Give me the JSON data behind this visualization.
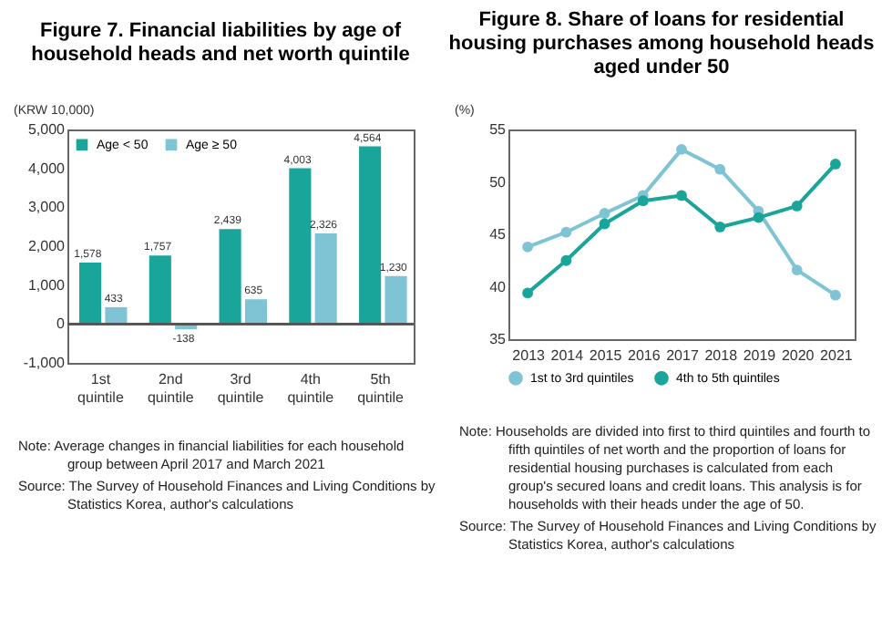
{
  "chart_data": [
    {
      "type": "bar",
      "title": "Figure 7. Financial liabilities by age of household heads and net worth quintile",
      "ylabel": "(KRW 10,000)",
      "categories": [
        "1st quintile",
        "2nd quintile",
        "3rd quintile",
        "4th quintile",
        "5th quintile"
      ],
      "series": [
        {
          "name": "Age < 50",
          "color": "#1aa59a",
          "values": [
            1578,
            1757,
            2439,
            4003,
            4564
          ],
          "value_labels": [
            "1,578",
            "1,757",
            "2,439",
            "4,003",
            "4,564"
          ]
        },
        {
          "name": "Age ≥ 50",
          "color": "#7ec4d4",
          "values": [
            433,
            -138,
            635,
            2326,
            1230
          ],
          "value_labels": [
            "433",
            "-138",
            "635",
            "2,326",
            "1,230"
          ]
        }
      ],
      "ylim": [
        -1000,
        5000
      ],
      "yticks": [
        {
          "value": -1000,
          "label": "-1,000"
        },
        0,
        {
          "value": 1000,
          "label": "1,000"
        },
        {
          "value": 2000,
          "label": "2,000"
        },
        {
          "value": 3000,
          "label": "3,000"
        },
        {
          "value": 4000,
          "label": "4,000"
        },
        {
          "value": 5000,
          "label": "5,000"
        }
      ],
      "legend": "top left",
      "annotations": [
        "Note: Average changes in financial liabilities for each household group between April 2017 and March 2021",
        "Source: The Survey of Household Finances and Living Conditions by Statistics Korea, author's calculations"
      ]
    },
    {
      "type": "line",
      "title": "Figure 8. Share of loans for residential housing purchases among household heads aged under 50",
      "ylabel": "(%)",
      "categories": [
        "2013",
        "2014",
        "2015",
        "2016",
        "2017",
        "2018",
        "2019",
        "2020",
        "2021"
      ],
      "series": [
        {
          "name": "1st to 3rd quintiles",
          "color": "#7ec4d4",
          "values": [
            43.8,
            45.2,
            47.0,
            48.7,
            53.1,
            51.2,
            47.2,
            41.6,
            39.2
          ]
        },
        {
          "name": "4th to 5th quintiles",
          "color": "#1aa59a",
          "values": [
            39.4,
            42.5,
            46.0,
            48.2,
            48.7,
            45.7,
            46.6,
            47.7,
            51.7
          ]
        }
      ],
      "ylim": [
        35,
        55
      ],
      "yticks": [
        35,
        40,
        45,
        50,
        55
      ],
      "marker": "circle",
      "legend": "bottom",
      "annotations": [
        "Note: Households are divided into first to third quintiles and fourth to fifth quintiles of net worth and the proportion of loans for residential housing purchases is calculated from each group's secured loans and credit loans. This analysis is for households with their heads under the age of 50.",
        "Source: The Survey of Household Finances and Living Conditions by Statistics Korea, author's calculations"
      ]
    }
  ]
}
